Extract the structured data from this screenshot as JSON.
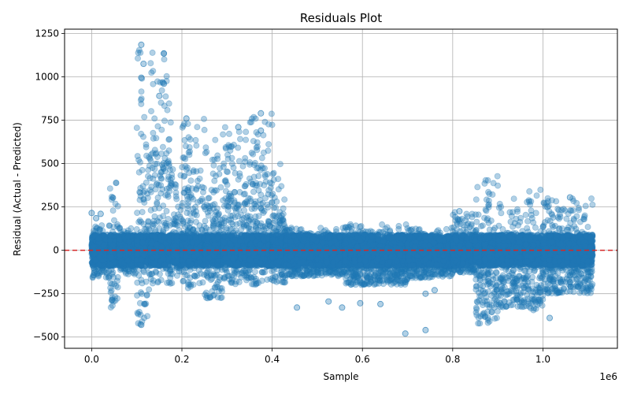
{
  "chart_data": {
    "type": "scatter",
    "title": "Residuals Plot",
    "xlabel": "Sample",
    "ylabel": "Residual (Actual - Predicted)",
    "x_scale_label": "1e6",
    "xlim": [
      -60000,
      1165000
    ],
    "ylim": [
      -565,
      1275
    ],
    "x_ticks": [
      0,
      200000,
      400000,
      600000,
      800000,
      1000000
    ],
    "x_tick_labels": [
      "0.0",
      "0.2",
      "0.4",
      "0.6",
      "0.8",
      "1.0"
    ],
    "y_ticks": [
      -500,
      -250,
      0,
      250,
      500,
      750,
      1000,
      1250
    ],
    "y_tick_labels": [
      "−500",
      "−250",
      "0",
      "250",
      "500",
      "750",
      "1000",
      "1250"
    ],
    "grid": true,
    "point_color": "#1f77b4",
    "point_alpha": 0.35,
    "reference_line": {
      "y": 0,
      "color": "#d62728",
      "style": "dashed"
    },
    "x_range": [
      0,
      1110000
    ],
    "segments": [
      {
        "x": [
          0,
          40000
        ],
        "low": -160,
        "high": 150
      },
      {
        "x": [
          40000,
          60000
        ],
        "low": -330,
        "high": 390
      },
      {
        "x": [
          60000,
          100000
        ],
        "low": -140,
        "high": 140
      },
      {
        "x": [
          100000,
          130000
        ],
        "low": -430,
        "high": 1190
      },
      {
        "x": [
          130000,
          180000
        ],
        "low": -200,
        "high": 1140
      },
      {
        "x": [
          180000,
          200000
        ],
        "low": -150,
        "high": 450
      },
      {
        "x": [
          200000,
          250000
        ],
        "low": -220,
        "high": 760
      },
      {
        "x": [
          250000,
          290000
        ],
        "low": -280,
        "high": 640
      },
      {
        "x": [
          290000,
          350000
        ],
        "low": -200,
        "high": 710
      },
      {
        "x": [
          350000,
          400000
        ],
        "low": -200,
        "high": 790
      },
      {
        "x": [
          400000,
          430000
        ],
        "low": -190,
        "high": 500
      },
      {
        "x": [
          430000,
          560000
        ],
        "low": -150,
        "high": 130
      },
      {
        "x": [
          560000,
          700000
        ],
        "low": -200,
        "high": 150
      },
      {
        "x": [
          700000,
          800000
        ],
        "low": -160,
        "high": 130
      },
      {
        "x": [
          800000,
          850000
        ],
        "low": -130,
        "high": 220
      },
      {
        "x": [
          850000,
          870000
        ],
        "low": -440,
        "high": 400
      },
      {
        "x": [
          870000,
          900000
        ],
        "low": -420,
        "high": 430
      },
      {
        "x": [
          900000,
          960000
        ],
        "low": -330,
        "high": 300
      },
      {
        "x": [
          960000,
          1000000
        ],
        "low": -350,
        "high": 370
      },
      {
        "x": [
          1000000,
          1110000
        ],
        "low": -250,
        "high": 300
      }
    ],
    "outliers": [
      {
        "x": 0,
        "y": 215
      },
      {
        "x": 10000,
        "y": 185
      },
      {
        "x": 20000,
        "y": 210
      },
      {
        "x": 110000,
        "y": 1185
      },
      {
        "x": 115000,
        "y": 1075
      },
      {
        "x": 160000,
        "y": 1135
      },
      {
        "x": 160000,
        "y": 960
      },
      {
        "x": 150000,
        "y": 890
      },
      {
        "x": 110000,
        "y": 995
      },
      {
        "x": 110000,
        "y": -430
      },
      {
        "x": 210000,
        "y": 760
      },
      {
        "x": 325000,
        "y": 710
      },
      {
        "x": 375000,
        "y": 790
      },
      {
        "x": 375000,
        "y": 690
      },
      {
        "x": 455000,
        "y": -330
      },
      {
        "x": 525000,
        "y": -295
      },
      {
        "x": 555000,
        "y": -330
      },
      {
        "x": 595000,
        "y": -305
      },
      {
        "x": 640000,
        "y": -310
      },
      {
        "x": 695000,
        "y": -480
      },
      {
        "x": 740000,
        "y": -460
      },
      {
        "x": 740000,
        "y": -250
      },
      {
        "x": 760000,
        "y": -230
      },
      {
        "x": 815000,
        "y": 225
      },
      {
        "x": 1015000,
        "y": -390
      },
      {
        "x": 1010000,
        "y": 250
      },
      {
        "x": 1060000,
        "y": 305
      }
    ]
  }
}
